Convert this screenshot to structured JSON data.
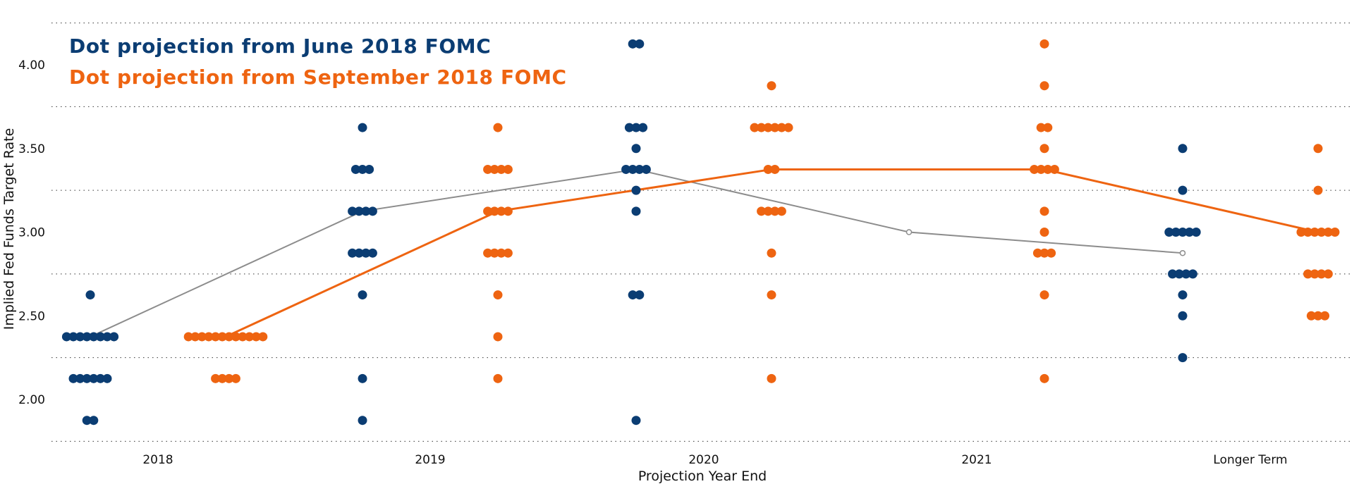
{
  "chart_data": {
    "type": "scatter",
    "categories": [
      "2018",
      "2019",
      "2020",
      "2021",
      "Longer Term"
    ],
    "xlabel": "Projection Year End",
    "ylabel": "Implied Fed Funds Target Rate",
    "ylim": [
      1.75,
      4.25
    ],
    "yticks": [
      "2.00",
      "2.50",
      "3.00",
      "3.50",
      "4.00"
    ],
    "grid": "horizontal dotted",
    "legend_position": "top-left",
    "series": [
      {
        "name": "Dot projection from June 2018 FOMC",
        "color": "#0b3d73",
        "median_line_color": "#8c8c8c",
        "dots": {
          "2018": [
            [
              2.625,
              1
            ],
            [
              2.375,
              8
            ],
            [
              2.125,
              6
            ],
            [
              1.875,
              2
            ]
          ],
          "2019": [
            [
              3.625,
              1
            ],
            [
              3.375,
              3
            ],
            [
              3.125,
              4
            ],
            [
              2.875,
              4
            ],
            [
              2.625,
              1
            ],
            [
              2.125,
              1
            ],
            [
              1.875,
              1
            ]
          ],
          "2020": [
            [
              4.125,
              2
            ],
            [
              3.625,
              3
            ],
            [
              3.5,
              1
            ],
            [
              3.375,
              4
            ],
            [
              3.25,
              1
            ],
            [
              3.125,
              1
            ],
            [
              2.625,
              2
            ],
            [
              1.875,
              1
            ]
          ],
          "Longer Term": [
            [
              3.5,
              1
            ],
            [
              3.25,
              1
            ],
            [
              3.0,
              5
            ],
            [
              2.75,
              4
            ],
            [
              2.625,
              1
            ],
            [
              2.5,
              1
            ],
            [
              2.25,
              1
            ]
          ]
        },
        "median": [
          [
            "2018",
            2.375
          ],
          [
            "2019",
            3.125
          ],
          [
            "2020",
            3.375
          ],
          [
            "2021",
            3.0
          ],
          [
            "Longer Term",
            2.875
          ]
        ]
      },
      {
        "name": "Dot projection from September 2018 FOMC",
        "color": "#ee6411",
        "median_line_color": "#ee6411",
        "dots": {
          "2018": [
            [
              2.375,
              12
            ],
            [
              2.125,
              4
            ]
          ],
          "2019": [
            [
              3.625,
              1
            ],
            [
              3.375,
              4
            ],
            [
              3.125,
              4
            ],
            [
              2.875,
              4
            ],
            [
              2.625,
              1
            ],
            [
              2.375,
              1
            ],
            [
              2.125,
              1
            ]
          ],
          "2020": [
            [
              3.875,
              1
            ],
            [
              3.625,
              6
            ],
            [
              3.375,
              2
            ],
            [
              3.125,
              4
            ],
            [
              2.875,
              1
            ],
            [
              2.625,
              1
            ],
            [
              2.125,
              1
            ]
          ],
          "2021": [
            [
              4.125,
              1
            ],
            [
              3.875,
              1
            ],
            [
              3.625,
              2
            ],
            [
              3.5,
              1
            ],
            [
              3.375,
              4
            ],
            [
              3.125,
              1
            ],
            [
              3.0,
              1
            ],
            [
              2.875,
              3
            ],
            [
              2.625,
              1
            ],
            [
              2.125,
              1
            ]
          ],
          "Longer Term": [
            [
              3.5,
              1
            ],
            [
              3.25,
              1
            ],
            [
              3.0,
              6
            ],
            [
              2.75,
              4
            ],
            [
              2.5,
              3
            ]
          ]
        },
        "median": [
          [
            "2018",
            2.375
          ],
          [
            "2019",
            3.125
          ],
          [
            "2020",
            3.375
          ],
          [
            "2021",
            3.375
          ],
          [
            "Longer Term",
            3.0
          ]
        ]
      }
    ]
  }
}
